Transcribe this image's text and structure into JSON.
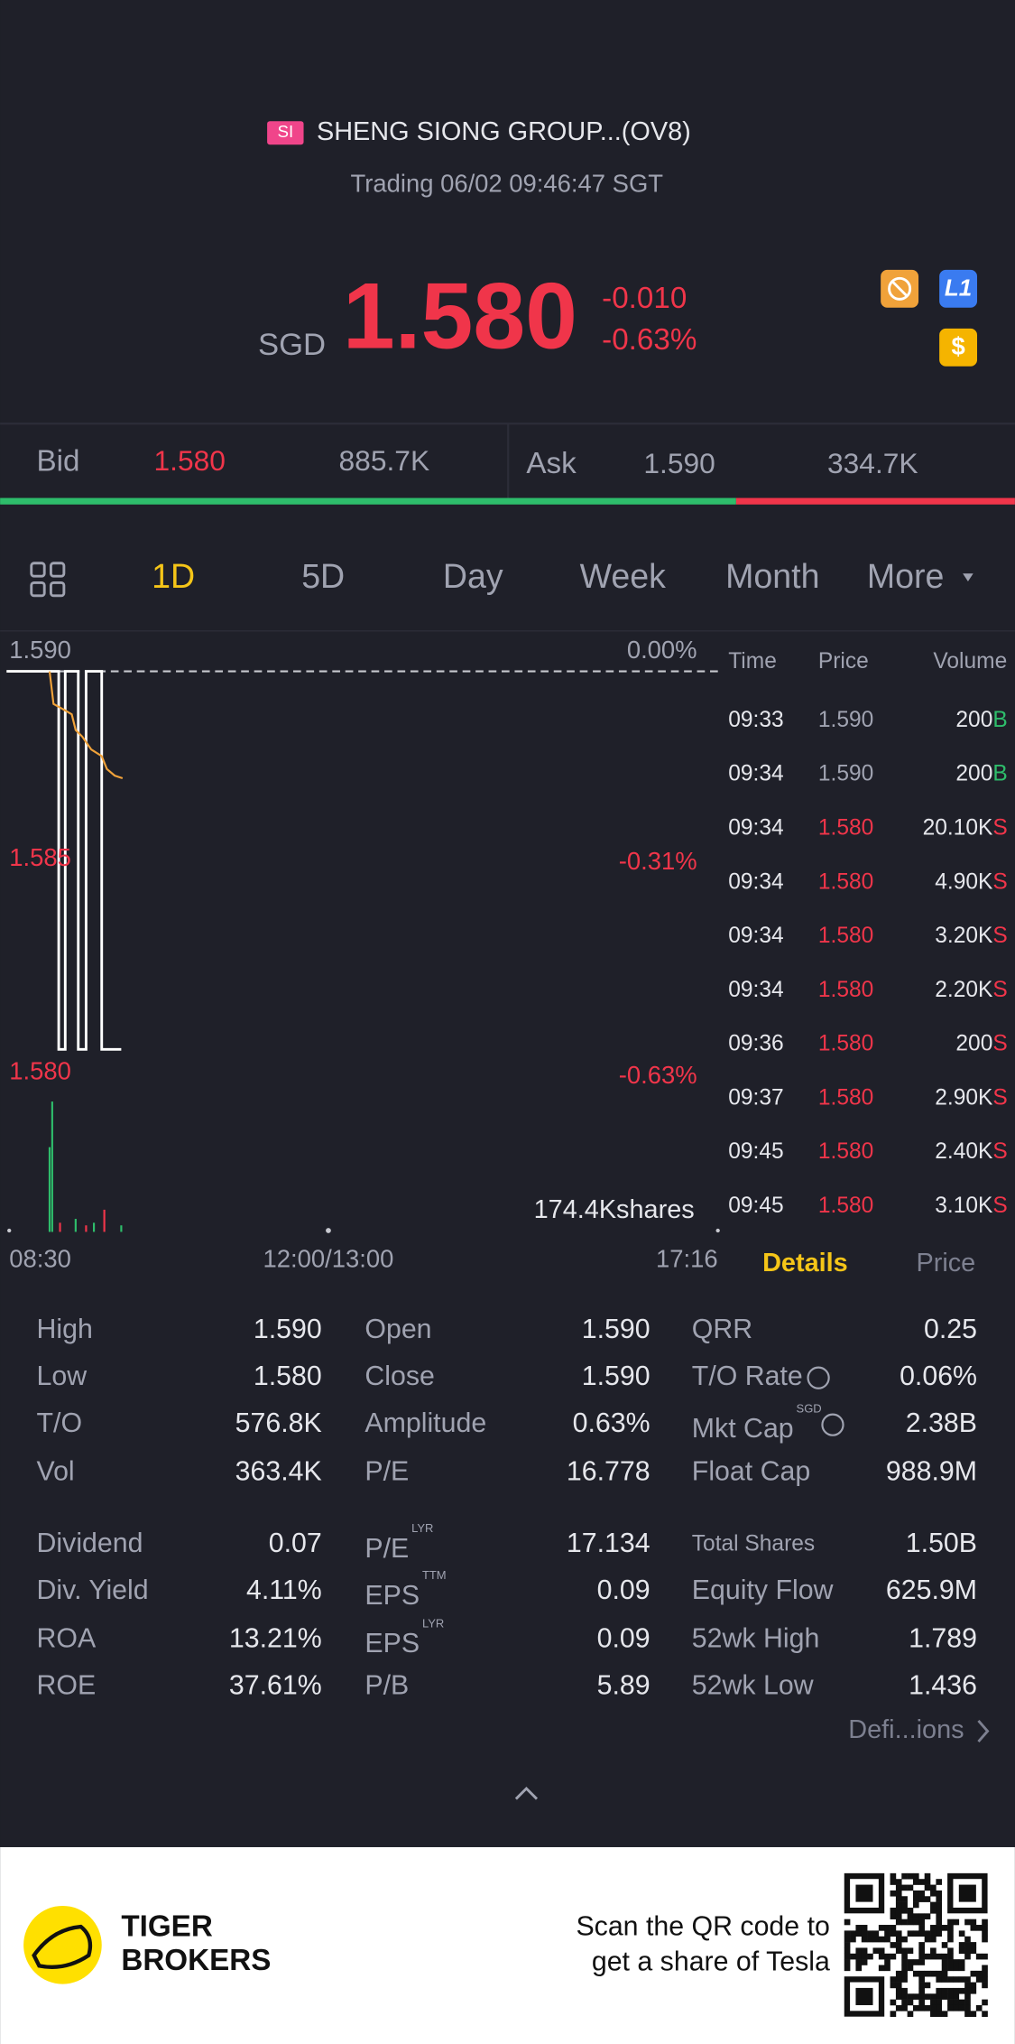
{
  "header": {
    "badge": "SI",
    "name": "SHENG SIONG GROUP...(OV8)",
    "status": "Trading 06/02 09:46:47 SGT"
  },
  "quote": {
    "currency": "SGD",
    "price": "1.580",
    "change": "-0.010",
    "change_pct": "-0.63%",
    "badges": [
      "L1",
      "$"
    ]
  },
  "book": {
    "bid_label": "Bid",
    "bid_price": "1.580",
    "bid_size": "885.7K",
    "ask_label": "Ask",
    "ask_price": "1.590",
    "ask_size": "334.7K"
  },
  "tabs": [
    "1D",
    "5D",
    "Day",
    "Week",
    "Month",
    "More"
  ],
  "chart": {
    "price_labels": [
      "1.590",
      "1.585",
      "1.580"
    ],
    "pct_labels": [
      "0.00%",
      "-0.31%",
      "-0.63%"
    ],
    "volume": "174.4Kshares",
    "x_labels": [
      "08:30",
      "12:00/13:00",
      "17:16"
    ]
  },
  "trades": {
    "headers": [
      "Time",
      "Price",
      "Volume"
    ],
    "rows": [
      [
        "09:33",
        "1.590",
        "200",
        "B"
      ],
      [
        "09:34",
        "1.590",
        "200",
        "B"
      ],
      [
        "09:34",
        "1.580",
        "20.10K",
        "S"
      ],
      [
        "09:34",
        "1.580",
        "4.90K",
        "S"
      ],
      [
        "09:34",
        "1.580",
        "3.20K",
        "S"
      ],
      [
        "09:34",
        "1.580",
        "2.20K",
        "S"
      ],
      [
        "09:36",
        "1.580",
        "200",
        "S"
      ],
      [
        "09:37",
        "1.580",
        "2.90K",
        "S"
      ],
      [
        "09:45",
        "1.580",
        "2.40K",
        "S"
      ],
      [
        "09:45",
        "1.580",
        "3.10K",
        "S"
      ]
    ]
  },
  "detail_tabs": [
    "Details",
    "Price"
  ],
  "stats": [
    [
      [
        {
          "label": "High",
          "value": "1.590"
        },
        {
          "label": "Open",
          "value": "1.590"
        },
        {
          "label": "QRR",
          "value": "0.25"
        }
      ],
      [
        {
          "label": "Low",
          "value": "1.580"
        },
        {
          "label": "Close",
          "value": "1.590"
        },
        {
          "label": "T/O Rate",
          "value": "0.06%"
        }
      ],
      [
        {
          "label": "T/O",
          "value": "576.8K"
        },
        {
          "label": "Amplitude",
          "value": "0.63%"
        },
        {
          "label": "Mkt Cap",
          "sup": "SGD",
          "value": "2.38B"
        }
      ],
      [
        {
          "label": "Vol",
          "value": "363.4K"
        },
        {
          "label": "P/E",
          "value": "16.778"
        },
        {
          "label": "Float Cap",
          "value": "988.9M"
        }
      ]
    ],
    [
      [
        {
          "label": "Dividend",
          "value": "0.07"
        },
        {
          "label": "P/E",
          "sup": "LYR",
          "value": "17.134"
        },
        {
          "label": "Total Shares",
          "value": "1.50B"
        }
      ],
      [
        {
          "label": "Div. Yield",
          "value": "4.11%"
        },
        {
          "label": "EPS",
          "sup": "TTM",
          "value": "0.09"
        },
        {
          "label": "Equity Flow",
          "value": "625.9M"
        }
      ],
      [
        {
          "label": "ROA",
          "value": "13.21%"
        },
        {
          "label": "EPS",
          "sup": "LYR",
          "value": "0.09"
        },
        {
          "label": "52wk High",
          "value": "1.789"
        }
      ],
      [
        {
          "label": "ROE",
          "value": "37.61%"
        },
        {
          "label": "P/B",
          "value": "5.89"
        },
        {
          "label": "52wk Low",
          "value": "1.436"
        }
      ]
    ]
  ],
  "definitions": "Defi...ions",
  "footer": {
    "brand": [
      "TIGER",
      "BROKERS"
    ],
    "promo": [
      "Scan the QR code to",
      "get a share of Tesla"
    ]
  }
}
